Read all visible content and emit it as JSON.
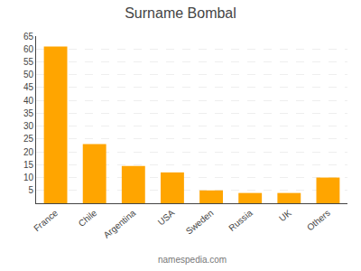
{
  "chart_data": {
    "type": "bar",
    "title": "Surname Bombal",
    "categories": [
      "France",
      "Chile",
      "Argentina",
      "USA",
      "Sweden",
      "Russia",
      "UK",
      "Others"
    ],
    "values": [
      61,
      23,
      14.5,
      12,
      5,
      4,
      4,
      10
    ],
    "color": "#FFA500",
    "ylim": [
      0,
      65
    ],
    "yticks": [
      5,
      10,
      15,
      20,
      25,
      30,
      35,
      40,
      45,
      50,
      55,
      60,
      65
    ],
    "grid": true,
    "annotations": [
      "namespedia.com"
    ]
  }
}
